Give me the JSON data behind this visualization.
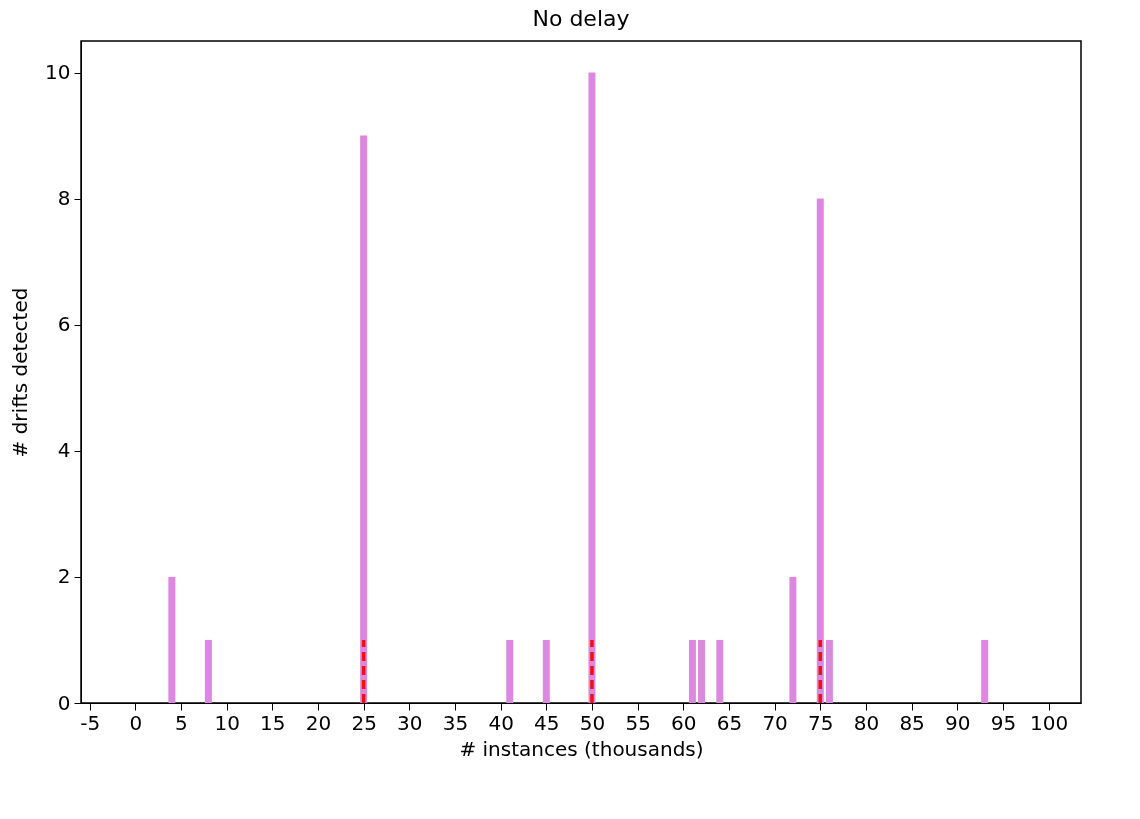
{
  "chart_data": {
    "type": "bar",
    "title": "No delay",
    "xlabel": "# instances (thousands)",
    "ylabel": "# drifts detected",
    "series": [
      {
        "color": "#dd88e0",
        "x": [
          4,
          8,
          25,
          41,
          45,
          50,
          61,
          62,
          64,
          72,
          75,
          76,
          93
        ],
        "values": [
          2,
          1,
          9,
          1,
          1,
          10,
          1,
          1,
          1,
          2,
          8,
          1,
          1
        ]
      },
      {
        "type": "line",
        "color": "#ee1111",
        "line_style": "dashed",
        "x": [
          25,
          25
        ],
        "values": [
          0,
          1
        ]
      },
      {
        "type": "line",
        "color": "#ee1111",
        "line_style": "dashed",
        "x": [
          50,
          50
        ],
        "values": [
          0,
          1
        ]
      },
      {
        "type": "line",
        "color": "#ee1111",
        "line_style": "dashed",
        "x": [
          75,
          75
        ],
        "values": [
          0,
          1
        ]
      }
    ],
    "xlim": [
      -5.4,
      103
    ],
    "xticks": [
      -5,
      0,
      5,
      10,
      15,
      20,
      25,
      30,
      35,
      40,
      45,
      50,
      55,
      60,
      65,
      70,
      75,
      80,
      85,
      90,
      95,
      100
    ],
    "ylim": [
      0,
      10.5
    ],
    "yticks": [
      0,
      2,
      4,
      6,
      8,
      10
    ]
  }
}
